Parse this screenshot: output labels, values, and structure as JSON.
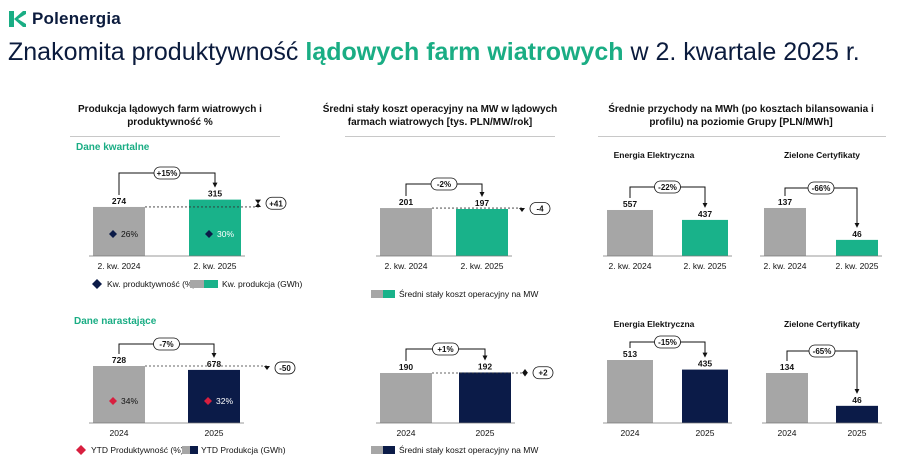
{
  "brand": {
    "name": "Polenergia",
    "logo_color": "#1aad84"
  },
  "headline": {
    "before": "Znakomita produktywność ",
    "highlight": "lądowych farm wiatrowych",
    "after": " w 2. kwartale 2025 r."
  },
  "colors": {
    "gray": "#a6a6a6",
    "green": "#19b28a",
    "navy": "#0b1b48",
    "red": "#d81f3f",
    "accent": "#1aad84"
  },
  "columns": {
    "production": {
      "title": "Produkcja lądowych farm wiatrowych i produktywność %"
    },
    "opex": {
      "title": "Średni stały koszt operacyjny na MW w lądowych farmach wiatrowych [tys. PLN/MW/rok]"
    },
    "revenue": {
      "title": "Średnie przychody na MWh (po kosztach bilansowania i profilu) na poziomie Grupy [PLN/MWh]"
    }
  },
  "sections": {
    "quarterly": "Dane kwartalne",
    "cumulative": "Dane narastające"
  },
  "subtitles": {
    "energy_q": "Energia Elektryczna",
    "certs_q": "Zielone Certyfikaty",
    "energy_c": "Energia Elektryczna",
    "certs_c": "Zielone Certyfikaty"
  },
  "legends": {
    "prod_q_marker": "Kw. produktywność (%)",
    "prod_q_bar": "Kw. produkcja (GWh)",
    "opex_q_bar": "Średni stały koszt operacyjny na MW",
    "prod_c_marker": "YTD Produktywność (%)",
    "prod_c_bar": "YTD Produkcja (GWh)",
    "opex_c_bar": "Średni stały koszt operacyjny na MW"
  },
  "chart_data": [
    {
      "id": "prod_q",
      "type": "bar",
      "categories": [
        "2. kw. 2024",
        "2. kw. 2025"
      ],
      "values": [
        274,
        315
      ],
      "productivity": [
        "26%",
        "30%"
      ],
      "change": "+15%",
      "delta": "+41",
      "bar_colors": [
        "gray",
        "green"
      ],
      "marker_color": "navy"
    },
    {
      "id": "opex_q",
      "type": "bar",
      "categories": [
        "2. kw. 2024",
        "2. kw. 2025"
      ],
      "values": [
        201,
        197
      ],
      "change": "-2%",
      "delta": "-4",
      "bar_colors": [
        "gray",
        "green"
      ]
    },
    {
      "id": "energy_q",
      "type": "bar",
      "categories": [
        "2. kw. 2024",
        "2. kw. 2025"
      ],
      "values": [
        557,
        437
      ],
      "change": "-22%",
      "bar_colors": [
        "gray",
        "green"
      ]
    },
    {
      "id": "certs_q",
      "type": "bar",
      "categories": [
        "2. kw. 2024",
        "2. kw. 2025"
      ],
      "values": [
        137,
        46
      ],
      "change": "-66%",
      "bar_colors": [
        "gray",
        "green"
      ]
    },
    {
      "id": "prod_c",
      "type": "bar",
      "categories": [
        "2024",
        "2025"
      ],
      "values": [
        728,
        678
      ],
      "productivity": [
        "34%",
        "32%"
      ],
      "change": "-7%",
      "delta": "-50",
      "bar_colors": [
        "gray",
        "navy"
      ],
      "marker_color": "red"
    },
    {
      "id": "opex_c",
      "type": "bar",
      "categories": [
        "2024",
        "2025"
      ],
      "values": [
        190,
        192
      ],
      "change": "+1%",
      "delta": "+2",
      "bar_colors": [
        "gray",
        "navy"
      ]
    },
    {
      "id": "energy_c",
      "type": "bar",
      "categories": [
        "2024",
        "2025"
      ],
      "values": [
        513,
        435
      ],
      "change": "-15%",
      "bar_colors": [
        "gray",
        "navy"
      ]
    },
    {
      "id": "certs_c",
      "type": "bar",
      "categories": [
        "2024",
        "2025"
      ],
      "values": [
        134,
        46
      ],
      "change": "-65%",
      "bar_colors": [
        "gray",
        "navy"
      ]
    }
  ]
}
